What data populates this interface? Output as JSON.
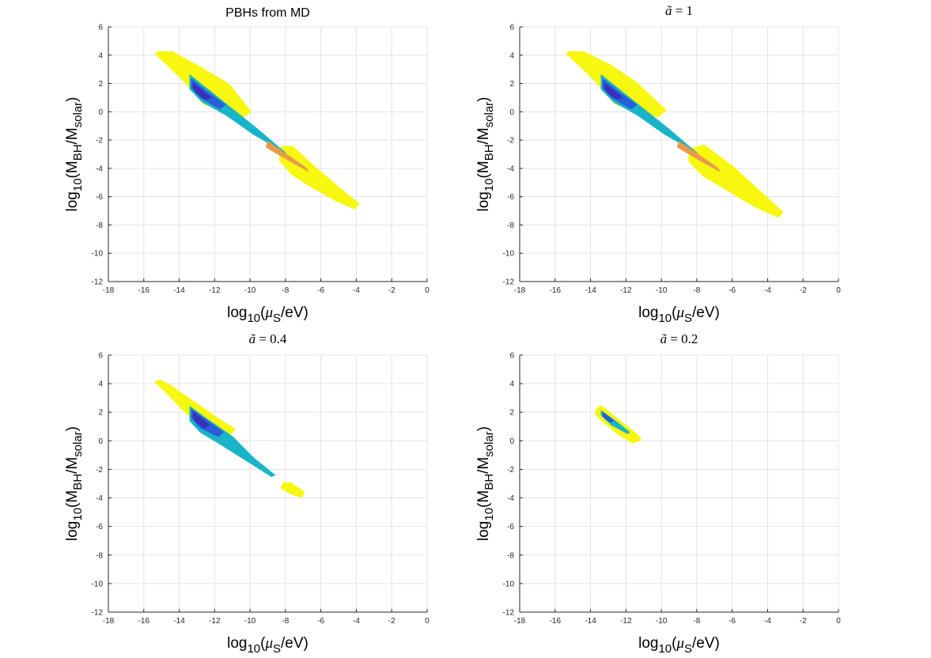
{
  "figure": {
    "layout": "2x2 grid of contour plots"
  },
  "colors": {
    "background": "#ffffff",
    "grid": "#e3e3e3",
    "axis": "#262626",
    "fill_yellow": "#f7f70f",
    "fill_cyan": "#19b4c8",
    "fill_blue": "#2a5dd8",
    "fill_indigo": "#3a2fb8",
    "fill_orange": "#e89a4a"
  },
  "chart_data": [
    {
      "type": "contour",
      "title": "PBHs from MD",
      "title_style": "sans",
      "xlabel": "log10(μS/eV)",
      "ylabel": "log10(MBH/Msolar)",
      "xlim": [
        -18,
        0
      ],
      "ylim": [
        -12,
        6
      ],
      "xticks": [
        -18,
        -16,
        -14,
        -12,
        -10,
        -8,
        -6,
        -4,
        -2,
        0
      ],
      "yticks": [
        -12,
        -10,
        -8,
        -6,
        -4,
        -2,
        0,
        2,
        4,
        6
      ],
      "grid": true,
      "regions": [
        {
          "name": "outer-band-upper",
          "color": "yellow",
          "points": [
            [
              -15.3,
              4.1
            ],
            [
              -15.2,
              4.2
            ],
            [
              -14.4,
              4.2
            ],
            [
              -12.8,
              3.1
            ],
            [
              -11.2,
              1.9
            ],
            [
              -10.0,
              0.0
            ],
            [
              -10.4,
              -0.3
            ],
            [
              -11.6,
              0.2
            ],
            [
              -12.6,
              0.6
            ],
            [
              -13.7,
              2.2
            ],
            [
              -14.6,
              3.3
            ]
          ]
        },
        {
          "name": "outer-band-lower",
          "color": "yellow",
          "points": [
            [
              -8.2,
              -2.5
            ],
            [
              -7.6,
              -2.5
            ],
            [
              -6.4,
              -3.9
            ],
            [
              -5.0,
              -5.4
            ],
            [
              -3.9,
              -6.5
            ],
            [
              -4.1,
              -6.8
            ],
            [
              -5.2,
              -6.2
            ],
            [
              -6.6,
              -5.2
            ],
            [
              -7.6,
              -4.4
            ],
            [
              -8.3,
              -3.4
            ]
          ]
        },
        {
          "name": "cyan-band",
          "color": "cyan",
          "points": [
            [
              -13.4,
              2.6
            ],
            [
              -12.4,
              1.6
            ],
            [
              -11.0,
              0.2
            ],
            [
              -9.6,
              -1.2
            ],
            [
              -8.2,
              -2.7
            ],
            [
              -8.0,
              -2.9
            ],
            [
              -9.8,
              -1.6
            ],
            [
              -11.4,
              -0.2
            ],
            [
              -12.7,
              0.7
            ],
            [
              -13.4,
              1.6
            ]
          ]
        },
        {
          "name": "blue-core",
          "color": "blue",
          "points": [
            [
              -13.3,
              2.3
            ],
            [
              -12.4,
              1.4
            ],
            [
              -11.4,
              0.5
            ],
            [
              -11.7,
              0.2
            ],
            [
              -12.8,
              1.0
            ],
            [
              -13.3,
              1.7
            ]
          ]
        },
        {
          "name": "indigo-core",
          "color": "indigo",
          "points": [
            [
              -13.2,
              2.0
            ],
            [
              -12.6,
              1.4
            ],
            [
              -12.2,
              1.0
            ],
            [
              -12.5,
              0.9
            ],
            [
              -13.0,
              1.3
            ],
            [
              -13.2,
              1.6
            ]
          ]
        },
        {
          "name": "orange-sliver",
          "color": "orange",
          "points": [
            [
              -9.0,
              -2.1
            ],
            [
              -6.9,
              -3.9
            ],
            [
              -6.7,
              -4.2
            ],
            [
              -7.6,
              -3.6
            ],
            [
              -9.1,
              -2.5
            ]
          ]
        }
      ]
    },
    {
      "type": "contour",
      "title": "ã = 1",
      "title_style": "math",
      "title_var": "ã",
      "title_value": "1",
      "xlabel": "log10(μS/eV)",
      "ylabel": "log10(MBH/Msolar)",
      "xlim": [
        -18,
        0
      ],
      "ylim": [
        -12,
        6
      ],
      "xticks": [
        -18,
        -16,
        -14,
        -12,
        -10,
        -8,
        -6,
        -4,
        -2,
        0
      ],
      "yticks": [
        -12,
        -10,
        -8,
        -6,
        -4,
        -2,
        0,
        2,
        4,
        6
      ],
      "grid": true,
      "regions": [
        {
          "name": "outer-band-upper",
          "color": "yellow",
          "points": [
            [
              -15.3,
              4.1
            ],
            [
              -15.2,
              4.2
            ],
            [
              -14.4,
              4.2
            ],
            [
              -12.8,
              3.2
            ],
            [
              -11.4,
              2.0
            ],
            [
              -9.8,
              0.1
            ],
            [
              -10.2,
              -0.3
            ],
            [
              -11.6,
              0.2
            ],
            [
              -12.6,
              0.6
            ],
            [
              -13.7,
              2.2
            ],
            [
              -14.6,
              3.3
            ]
          ]
        },
        {
          "name": "outer-band-lower",
          "color": "yellow",
          "points": [
            [
              -8.4,
              -2.7
            ],
            [
              -7.6,
              -2.4
            ],
            [
              -6.0,
              -3.9
            ],
            [
              -4.5,
              -5.6
            ],
            [
              -3.2,
              -7.1
            ],
            [
              -3.4,
              -7.4
            ],
            [
              -4.8,
              -6.6
            ],
            [
              -6.4,
              -5.4
            ],
            [
              -7.6,
              -4.5
            ],
            [
              -8.4,
              -3.5
            ]
          ]
        },
        {
          "name": "cyan-band",
          "color": "cyan",
          "points": [
            [
              -13.4,
              2.6
            ],
            [
              -12.4,
              1.6
            ],
            [
              -11.0,
              0.2
            ],
            [
              -9.6,
              -1.2
            ],
            [
              -8.2,
              -2.7
            ],
            [
              -8.0,
              -2.9
            ],
            [
              -9.8,
              -1.6
            ],
            [
              -11.4,
              -0.2
            ],
            [
              -12.7,
              0.7
            ],
            [
              -13.4,
              1.6
            ]
          ]
        },
        {
          "name": "blue-core",
          "color": "blue",
          "points": [
            [
              -13.3,
              2.3
            ],
            [
              -12.4,
              1.4
            ],
            [
              -11.4,
              0.5
            ],
            [
              -11.7,
              0.2
            ],
            [
              -12.8,
              1.0
            ],
            [
              -13.3,
              1.7
            ]
          ]
        },
        {
          "name": "indigo-core",
          "color": "indigo",
          "points": [
            [
              -13.2,
              2.0
            ],
            [
              -12.6,
              1.4
            ],
            [
              -12.2,
              1.0
            ],
            [
              -12.5,
              0.9
            ],
            [
              -13.0,
              1.3
            ],
            [
              -13.2,
              1.6
            ]
          ]
        },
        {
          "name": "orange-sliver",
          "color": "orange",
          "points": [
            [
              -9.0,
              -2.1
            ],
            [
              -6.9,
              -3.9
            ],
            [
              -6.7,
              -4.2
            ],
            [
              -7.6,
              -3.6
            ],
            [
              -9.1,
              -2.5
            ]
          ]
        }
      ]
    },
    {
      "type": "contour",
      "title": "ã = 0.4",
      "title_style": "math",
      "title_var": "ã",
      "title_value": "0.4",
      "xlabel": "log10(μS/eV)",
      "ylabel": "log10(MBH/Msolar)",
      "xlim": [
        -18,
        0
      ],
      "ylim": [
        -12,
        6
      ],
      "xticks": [
        -18,
        -16,
        -14,
        -12,
        -10,
        -8,
        -6,
        -4,
        -2,
        0
      ],
      "yticks": [
        -12,
        -10,
        -8,
        -6,
        -4,
        -2,
        0,
        2,
        4,
        6
      ],
      "grid": true,
      "regions": [
        {
          "name": "outer-band-upper",
          "color": "yellow",
          "points": [
            [
              -15.3,
              4.1
            ],
            [
              -15.1,
              4.2
            ],
            [
              -14.6,
              3.9
            ],
            [
              -13.2,
              2.7
            ],
            [
              -11.8,
              1.5
            ],
            [
              -10.9,
              0.8
            ],
            [
              -11.3,
              0.3
            ],
            [
              -12.4,
              0.8
            ],
            [
              -13.6,
              2.0
            ],
            [
              -14.7,
              3.4
            ]
          ]
        },
        {
          "name": "outer-band-lower",
          "color": "yellow",
          "points": [
            [
              -8.1,
              -3.0
            ],
            [
              -7.7,
              -3.0
            ],
            [
              -7.0,
              -3.6
            ],
            [
              -7.1,
              -3.9
            ],
            [
              -7.6,
              -3.7
            ],
            [
              -8.2,
              -3.3
            ]
          ]
        },
        {
          "name": "cyan-band",
          "color": "cyan",
          "points": [
            [
              -13.4,
              2.4
            ],
            [
              -12.4,
              1.5
            ],
            [
              -11.0,
              0.3
            ],
            [
              -9.8,
              -1.2
            ],
            [
              -8.6,
              -2.4
            ],
            [
              -8.8,
              -2.5
            ],
            [
              -10.2,
              -1.4
            ],
            [
              -11.6,
              -0.3
            ],
            [
              -12.8,
              0.6
            ],
            [
              -13.4,
              1.4
            ]
          ]
        },
        {
          "name": "blue-core",
          "color": "blue",
          "points": [
            [
              -13.3,
              2.2
            ],
            [
              -12.4,
              1.4
            ],
            [
              -11.5,
              0.6
            ],
            [
              -11.8,
              0.3
            ],
            [
              -12.8,
              0.9
            ],
            [
              -13.3,
              1.6
            ]
          ]
        },
        {
          "name": "indigo-core",
          "color": "indigo",
          "points": [
            [
              -13.2,
              2.0
            ],
            [
              -12.6,
              1.4
            ],
            [
              -12.3,
              1.1
            ],
            [
              -12.6,
              0.9
            ],
            [
              -13.0,
              1.3
            ],
            [
              -13.2,
              1.6
            ]
          ]
        }
      ]
    },
    {
      "type": "contour",
      "title": "ã = 0.2",
      "title_style": "math",
      "title_var": "ã",
      "title_value": "0.2",
      "xlabel": "log10(μS/eV)",
      "ylabel": "log10(MBH/Msolar)",
      "xlim": [
        -18,
        0
      ],
      "ylim": [
        -12,
        6
      ],
      "xticks": [
        -18,
        -16,
        -14,
        -12,
        -10,
        -8,
        -6,
        -4,
        -2,
        0
      ],
      "yticks": [
        -12,
        -10,
        -8,
        -6,
        -4,
        -2,
        0,
        2,
        4,
        6
      ],
      "grid": true,
      "regions": [
        {
          "name": "outer-band",
          "color": "yellow",
          "points": [
            [
              -13.6,
              2.2
            ],
            [
              -13.4,
              2.4
            ],
            [
              -12.6,
              1.6
            ],
            [
              -11.4,
              0.4
            ],
            [
              -11.2,
              0.1
            ],
            [
              -11.6,
              -0.1
            ],
            [
              -12.3,
              0.4
            ],
            [
              -13.1,
              1.2
            ],
            [
              -13.7,
              1.9
            ]
          ]
        },
        {
          "name": "cyan-band",
          "color": "cyan",
          "points": [
            [
              -13.4,
              2.1
            ],
            [
              -12.6,
              1.4
            ],
            [
              -11.8,
              0.6
            ],
            [
              -11.9,
              0.5
            ],
            [
              -12.8,
              1.1
            ],
            [
              -13.4,
              1.8
            ]
          ]
        },
        {
          "name": "blue-core",
          "color": "blue",
          "points": [
            [
              -13.3,
              2.0
            ],
            [
              -12.9,
              1.6
            ],
            [
              -12.7,
              1.4
            ],
            [
              -12.9,
              1.3
            ],
            [
              -13.3,
              1.7
            ]
          ]
        }
      ]
    }
  ]
}
